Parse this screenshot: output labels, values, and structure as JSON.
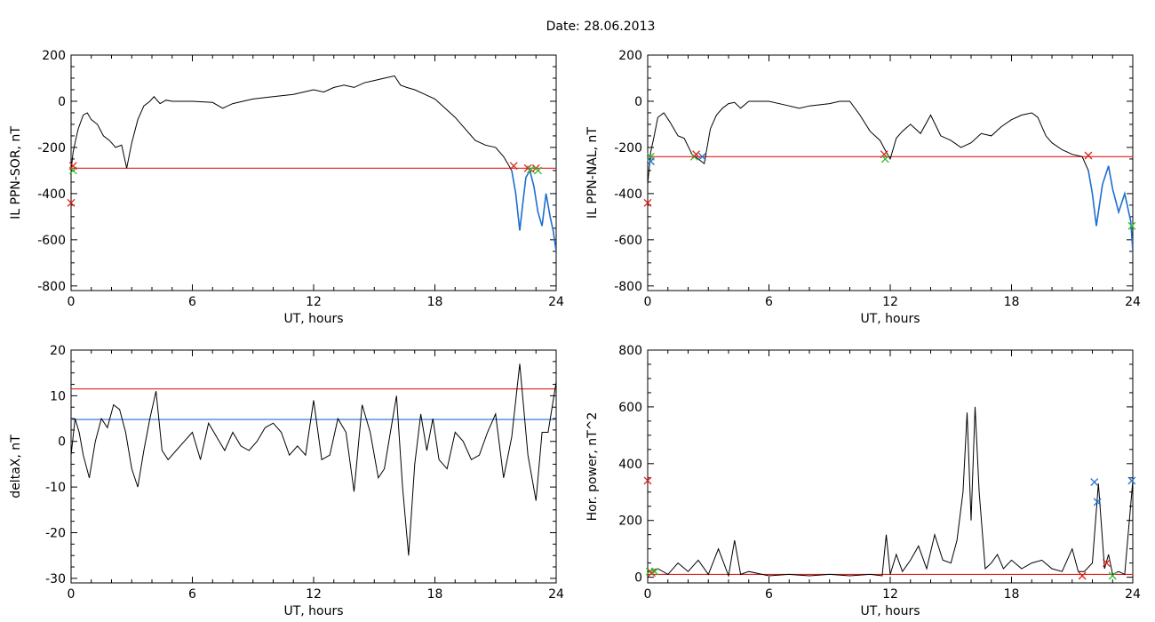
{
  "figure": {
    "title": "Date:  28.06.2013"
  },
  "colors": {
    "axis": "#000000",
    "trace": "#000000",
    "red": "#e0201b",
    "blue": "#1f6fcf",
    "green": "#2fbf2f"
  },
  "chart_data": [
    {
      "type": "line",
      "ylabel": "IL PPN-SOR, nT",
      "xlabel": "UT, hours",
      "xlim": [
        0,
        24
      ],
      "ylim": [
        -820,
        200
      ],
      "xticks": [
        0,
        6,
        12,
        18,
        24
      ],
      "yticks": [
        -800,
        -600,
        -400,
        -200,
        0,
        200
      ],
      "series": [
        {
          "x": [
            0,
            0.1,
            0.2,
            0.35,
            0.6,
            0.8,
            1.0,
            1.3,
            1.6,
            1.9,
            2.2,
            2.5,
            2.75,
            3.0,
            3.3,
            3.6,
            3.9,
            4.1,
            4.4,
            4.7,
            5.0,
            6,
            7,
            7.5,
            8,
            9,
            10,
            11,
            11.5,
            12,
            12.5,
            13,
            13.5,
            14,
            14.5,
            15,
            15.5,
            16,
            16.3,
            16.6,
            17,
            17.5,
            18,
            18.5,
            19,
            19.5,
            20,
            20.5,
            21,
            21.4,
            21.8,
            22.0,
            22.2,
            22.35,
            22.5,
            22.7,
            22.9,
            23.1,
            23.3,
            23.5,
            23.7,
            23.85,
            24
          ],
          "y": [
            -300,
            -220,
            -180,
            -120,
            -60,
            -50,
            -80,
            -100,
            -150,
            -170,
            -200,
            -190,
            -290,
            -180,
            -80,
            -20,
            0,
            20,
            -10,
            5,
            0,
            0,
            -5,
            -30,
            -10,
            10,
            20,
            30,
            40,
            50,
            40,
            60,
            70,
            60,
            80,
            90,
            100,
            110,
            70,
            60,
            50,
            30,
            10,
            -30,
            -70,
            -120,
            -170,
            -190,
            -200,
            -240,
            -300,
            -400,
            -560,
            -440,
            -330,
            -300,
            -370,
            -480,
            -540,
            -400,
            -500,
            -560,
            -650
          ]
        }
      ],
      "hline": {
        "y": -290,
        "color": "red"
      },
      "blue_from": 21.8,
      "markers": [
        {
          "x": 0,
          "y": -440,
          "color": "red"
        },
        {
          "x": 0.1,
          "y": -300,
          "color": "green"
        },
        {
          "x": 0.1,
          "y": -280,
          "color": "red"
        },
        {
          "x": 21.9,
          "y": -280,
          "color": "red"
        },
        {
          "x": 22.6,
          "y": -290,
          "color": "red"
        },
        {
          "x": 22.75,
          "y": -295,
          "color": "green"
        },
        {
          "x": 23.0,
          "y": -290,
          "color": "red"
        },
        {
          "x": 23.1,
          "y": -300,
          "color": "green"
        }
      ]
    },
    {
      "type": "line",
      "ylabel": "IL PPN-NAL, nT",
      "xlabel": "UT, hours",
      "xlim": [
        0,
        24
      ],
      "ylim": [
        -820,
        200
      ],
      "xticks": [
        0,
        6,
        12,
        18,
        24
      ],
      "yticks": [
        -800,
        -600,
        -400,
        -200,
        0,
        200
      ],
      "series": [
        {
          "x": [
            0,
            0.15,
            0.3,
            0.5,
            0.8,
            1.1,
            1.5,
            1.8,
            2.2,
            2.5,
            2.8,
            3.1,
            3.4,
            3.7,
            4.0,
            4.3,
            4.6,
            5,
            6,
            7,
            7.5,
            8,
            9,
            9.5,
            10,
            10.5,
            11,
            11.5,
            11.8,
            12.0,
            12.3,
            12.6,
            13,
            13.5,
            14,
            14.5,
            15,
            15.5,
            16,
            16.5,
            17,
            17.5,
            18,
            18.5,
            19,
            19.3,
            19.7,
            20,
            20.5,
            21,
            21.5,
            21.8,
            22.0,
            22.2,
            22.5,
            22.8,
            23.0,
            23.3,
            23.6,
            23.9,
            24
          ],
          "y": [
            -360,
            -220,
            -160,
            -70,
            -50,
            -90,
            -150,
            -160,
            -230,
            -250,
            -270,
            -120,
            -60,
            -30,
            -10,
            -5,
            -30,
            0,
            0,
            -20,
            -30,
            -20,
            -10,
            0,
            0,
            -60,
            -130,
            -170,
            -220,
            -250,
            -160,
            -130,
            -100,
            -140,
            -60,
            -150,
            -170,
            -200,
            -180,
            -140,
            -150,
            -110,
            -80,
            -60,
            -50,
            -70,
            -150,
            -180,
            -210,
            -230,
            -240,
            -300,
            -400,
            -540,
            -360,
            -280,
            -380,
            -480,
            -400,
            -520,
            -650
          ]
        }
      ],
      "hline": {
        "y": -240,
        "color": "red"
      },
      "blue_from": 21.8,
      "markers": [
        {
          "x": 0,
          "y": -440,
          "color": "red"
        },
        {
          "x": 0.15,
          "y": -240,
          "color": "green"
        },
        {
          "x": 0.15,
          "y": -260,
          "color": "blue"
        },
        {
          "x": 2.3,
          "y": -240,
          "color": "green"
        },
        {
          "x": 2.4,
          "y": -230,
          "color": "red"
        },
        {
          "x": 2.7,
          "y": -240,
          "color": "blue"
        },
        {
          "x": 11.7,
          "y": -230,
          "color": "red"
        },
        {
          "x": 11.75,
          "y": -250,
          "color": "green"
        },
        {
          "x": 21.8,
          "y": -235,
          "color": "red"
        },
        {
          "x": 23.95,
          "y": -540,
          "color": "green"
        }
      ]
    },
    {
      "type": "line",
      "ylabel": "deltaX, nT",
      "xlabel": "UT, hours",
      "xlim": [
        0,
        24
      ],
      "ylim": [
        -31,
        20
      ],
      "xticks": [
        0,
        6,
        12,
        18,
        24
      ],
      "yticks": [
        -30,
        -20,
        -10,
        0,
        10,
        20
      ],
      "series": [
        {
          "x": [
            0,
            0.2,
            0.4,
            0.6,
            0.9,
            1.2,
            1.5,
            1.8,
            2.1,
            2.4,
            2.7,
            3.0,
            3.3,
            3.6,
            3.9,
            4.2,
            4.5,
            4.8,
            5.2,
            5.6,
            6.0,
            6.4,
            6.8,
            7.2,
            7.6,
            8.0,
            8.4,
            8.8,
            9.2,
            9.6,
            10.0,
            10.4,
            10.8,
            11.2,
            11.6,
            12.0,
            12.4,
            12.8,
            13.2,
            13.6,
            14.0,
            14.4,
            14.8,
            15.2,
            15.5,
            15.8,
            16.1,
            16.4,
            16.7,
            17.0,
            17.3,
            17.6,
            17.9,
            18.2,
            18.6,
            19.0,
            19.4,
            19.8,
            20.2,
            20.6,
            21.0,
            21.4,
            21.8,
            22.2,
            22.6,
            23.0,
            23.3,
            23.6,
            24
          ],
          "y": [
            -3,
            5,
            2,
            -3,
            -8,
            0,
            5,
            3,
            8,
            7,
            2,
            -6,
            -10,
            -2,
            5,
            11,
            -2,
            -4,
            -2,
            0,
            2,
            -4,
            4,
            1,
            -2,
            2,
            -1,
            -2,
            0,
            3,
            4,
            2,
            -3,
            -1,
            -3,
            9,
            -4,
            -3,
            5,
            2,
            -11,
            8,
            2,
            -8,
            -6,
            2,
            10,
            -10,
            -25,
            -5,
            6,
            -2,
            5,
            -4,
            -6,
            2,
            0,
            -4,
            -3,
            2,
            6,
            -8,
            1,
            17,
            -3,
            -13,
            2,
            2,
            13
          ]
        }
      ],
      "hlines": [
        {
          "y": 11.5,
          "color": "red"
        },
        {
          "y": 4.8,
          "color": "blue"
        }
      ]
    },
    {
      "type": "line",
      "ylabel": "Hor. power, nT^2",
      "xlabel": "UT, hours",
      "xlim": [
        0,
        24
      ],
      "ylim": [
        -20,
        800
      ],
      "xticks": [
        0,
        6,
        12,
        18,
        24
      ],
      "yticks": [
        0,
        200,
        400,
        600,
        800
      ],
      "series": [
        {
          "x": [
            0,
            0.5,
            1.0,
            1.5,
            2.0,
            2.5,
            3.0,
            3.5,
            4.0,
            4.3,
            4.6,
            5.0,
            6,
            7,
            8,
            9,
            10,
            11,
            11.6,
            11.8,
            12.0,
            12.3,
            12.6,
            13.0,
            13.4,
            13.8,
            14.2,
            14.6,
            15.0,
            15.3,
            15.6,
            15.8,
            16.0,
            16.2,
            16.4,
            16.7,
            17.0,
            17.3,
            17.6,
            18.0,
            18.5,
            19.0,
            19.5,
            20.0,
            20.5,
            21.0,
            21.3,
            21.6,
            22.0,
            22.3,
            22.6,
            22.8,
            23.0,
            23.3,
            23.6,
            24
          ],
          "y": [
            20,
            30,
            10,
            50,
            20,
            60,
            10,
            100,
            5,
            130,
            10,
            20,
            5,
            10,
            5,
            10,
            5,
            10,
            5,
            150,
            10,
            80,
            20,
            60,
            110,
            30,
            150,
            60,
            50,
            130,
            300,
            580,
            200,
            600,
            300,
            30,
            50,
            80,
            30,
            60,
            30,
            50,
            60,
            30,
            20,
            100,
            20,
            20,
            50,
            330,
            30,
            80,
            10,
            20,
            10,
            340
          ]
        }
      ],
      "hline": {
        "y": 10,
        "color": "red"
      },
      "markers": [
        {
          "x": 0,
          "y": 340,
          "color": "red"
        },
        {
          "x": 0.1,
          "y": 20,
          "color": "green"
        },
        {
          "x": 0.2,
          "y": 15,
          "color": "red"
        },
        {
          "x": 0.35,
          "y": 20,
          "color": "green"
        },
        {
          "x": 21.5,
          "y": 5,
          "color": "red"
        },
        {
          "x": 22.1,
          "y": 335,
          "color": "blue"
        },
        {
          "x": 22.25,
          "y": 265,
          "color": "blue"
        },
        {
          "x": 22.7,
          "y": 50,
          "color": "red"
        },
        {
          "x": 23.0,
          "y": 5,
          "color": "green"
        },
        {
          "x": 23.95,
          "y": 340,
          "color": "blue"
        }
      ]
    }
  ]
}
